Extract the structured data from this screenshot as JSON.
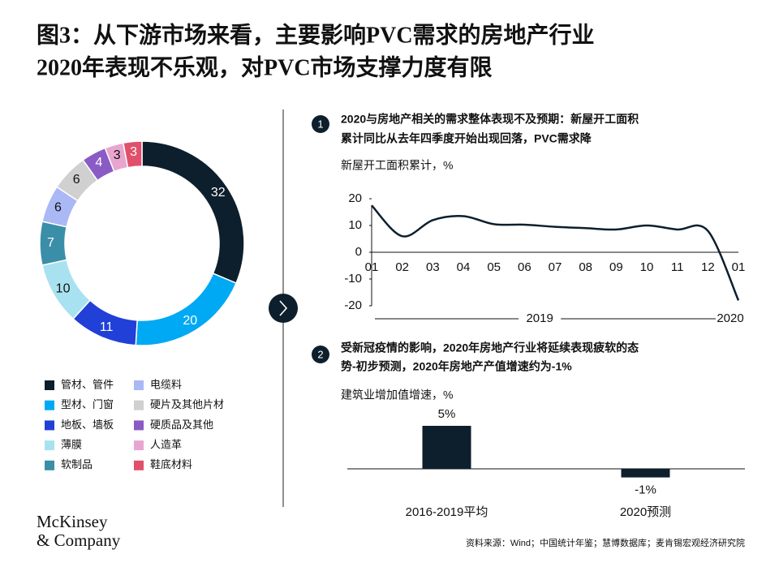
{
  "title_lines": [
    "图3：从下游市场来看，主要影响PVC需求的房地产行业",
    "2020年表现不乐观，对PVC市场支撑力度有限"
  ],
  "sections": [
    {
      "number": "1",
      "lines": [
        "2020与房地产相关的需求整体表现不及预期：新屋开工面积",
        "累计同比从去年四季度开始出现回落，PVC需求降"
      ]
    },
    {
      "number": "2",
      "lines": [
        "受新冠疫情的影响，2020年房地产行业将延续表现疲软的态",
        "势-初步预测，2020年房地产产值增速约为-1%"
      ]
    }
  ],
  "chart_data": [
    {
      "type": "pie",
      "categories": [
        "管材、管件",
        "型材、门窗",
        "地板、墙板",
        "薄膜",
        "软制品",
        "电缆料",
        "硬片及其他片材",
        "硬质品及其他",
        "人造革",
        "鞋底材料"
      ],
      "values": [
        32,
        20,
        11,
        10,
        7,
        6,
        6,
        4,
        3,
        3
      ],
      "colors": [
        "#0d1f2d",
        "#00a9f4",
        "#2140d8",
        "#a8e2f0",
        "#3a8ea8",
        "#aab8f5",
        "#d0d0d0",
        "#8a5bc4",
        "#e8a5cf",
        "#e0506a"
      ]
    },
    {
      "type": "line",
      "title": "新屋开工面积累计，%",
      "categories": [
        "01",
        "02",
        "03",
        "04",
        "05",
        "06",
        "07",
        "08",
        "09",
        "10",
        "11",
        "12",
        "01"
      ],
      "year_labels": [
        "2019",
        "2020"
      ],
      "values": [
        17.5,
        6,
        12,
        13.5,
        10.5,
        10.3,
        9.5,
        9,
        8.5,
        10,
        8.5,
        8,
        -18
      ],
      "color": "#0d1f2d",
      "ylim": [
        -20,
        20
      ],
      "yticks": [
        20,
        10,
        0,
        -10,
        -20
      ]
    },
    {
      "type": "bar",
      "title": "建筑业增加值增速，%",
      "categories": [
        "2016-2019平均",
        "2020预测"
      ],
      "values": [
        5,
        -1
      ],
      "value_labels": [
        "5%",
        "-1%"
      ],
      "color": "#0d1f2d"
    }
  ],
  "source": "资料来源：Wind；中国统计年鉴；慧博数据库；麦肯锡宏观经济研究院",
  "logo": [
    "McKinsey",
    "& Company"
  ]
}
